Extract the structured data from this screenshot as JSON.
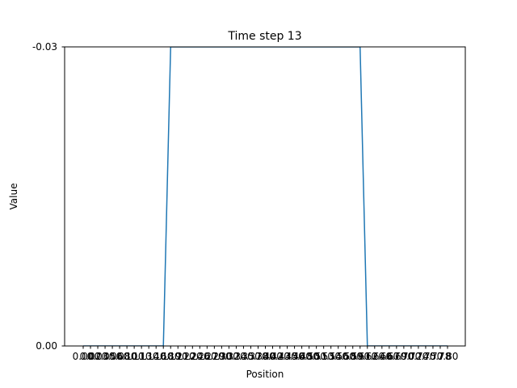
{
  "chart_data": {
    "type": "line",
    "title": "Time step 13",
    "xlabel": "Position",
    "ylabel": "Value",
    "y_tick_labels": [
      "-0.03",
      "0.00"
    ],
    "ylim": [
      0,
      -0.03
    ],
    "x_tick_count": 51,
    "x_tick_last_label": "0.80",
    "grid": false,
    "line_color": "#1f77b4",
    "x": [
      0.0,
      0.016,
      0.032,
      0.048,
      0.064,
      0.08,
      0.096,
      0.112,
      0.128,
      0.144,
      0.16,
      0.176,
      0.192,
      0.208,
      0.224,
      0.24,
      0.256,
      0.272,
      0.288,
      0.304,
      0.32,
      0.336,
      0.352,
      0.368,
      0.384,
      0.4,
      0.416,
      0.432,
      0.448,
      0.464,
      0.48,
      0.496,
      0.512,
      0.528,
      0.544,
      0.56,
      0.576,
      0.592,
      0.608,
      0.624,
      0.64,
      0.656,
      0.672,
      0.688,
      0.704,
      0.72,
      0.736,
      0.752,
      0.768,
      0.784,
      0.8
    ],
    "values": [
      0,
      0,
      0,
      0,
      0,
      0,
      0,
      0,
      0,
      0,
      0,
      0,
      -0.03,
      -0.03,
      -0.03,
      -0.03,
      -0.03,
      -0.03,
      -0.03,
      -0.03,
      -0.03,
      -0.03,
      -0.03,
      -0.03,
      -0.03,
      -0.03,
      -0.03,
      -0.03,
      -0.03,
      -0.03,
      -0.03,
      -0.03,
      -0.03,
      -0.03,
      -0.03,
      -0.03,
      -0.03,
      -0.03,
      -0.03,
      0,
      0,
      0,
      0,
      0,
      0,
      0,
      0,
      0,
      0,
      0,
      0
    ]
  }
}
